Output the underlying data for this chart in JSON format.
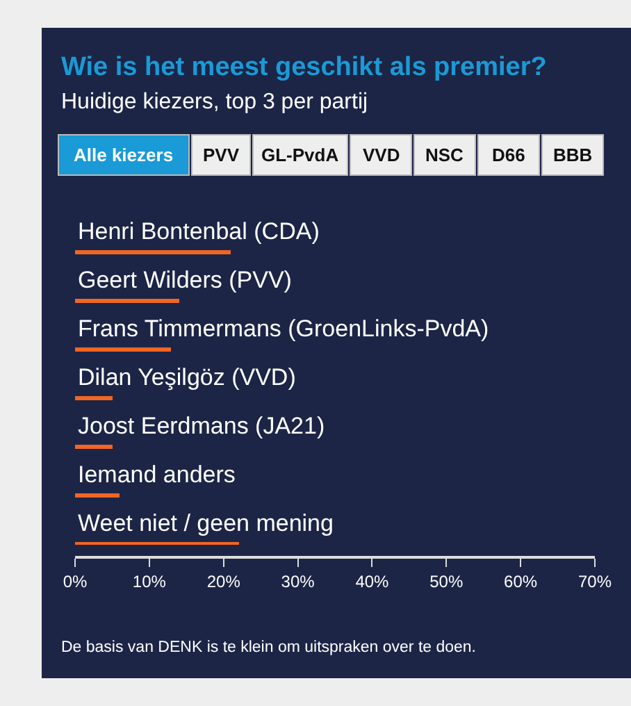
{
  "chart_data": {
    "type": "bar",
    "orientation": "horizontal",
    "title": "Wie is het meest geschikt als premier?",
    "subtitle": "Huidige kiezers, top 3 per partij",
    "categories": [
      "Henri Bontenbal (CDA)",
      "Geert Wilders (PVV)",
      "Frans Timmermans (GroenLinks-PvdA)",
      "Dilan Yeşilgöz (VVD)",
      "Joost Eerdmans (JA21)",
      "Iemand anders",
      "Weet niet / geen mening"
    ],
    "values": [
      21,
      14,
      13,
      5,
      5,
      6,
      22
    ],
    "color": "#f26522",
    "xlim": [
      0,
      70
    ],
    "xticks": [
      {
        "value": 0,
        "label": "0%"
      },
      {
        "value": 10,
        "label": "10%"
      },
      {
        "value": 20,
        "label": "20%"
      },
      {
        "value": 30,
        "label": "30%"
      },
      {
        "value": 40,
        "label": "40%"
      },
      {
        "value": 50,
        "label": "50%"
      },
      {
        "value": 60,
        "label": "60%"
      },
      {
        "value": 70,
        "label": "70%"
      }
    ],
    "grid": false,
    "legend": false,
    "annotations": [
      "Alle kiezers",
      "PVV",
      "GL-PvdA",
      "VVD",
      "NSC",
      "D66",
      "BBB",
      "De basis van DENK is te klein om uitspraken over te doen."
    ]
  }
}
